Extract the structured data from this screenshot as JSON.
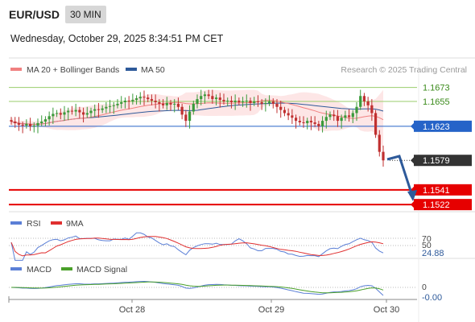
{
  "header": {
    "symbol": "EUR/USD",
    "timeframe": "30 MIN",
    "datetime": "Wednesday, October 29, 2025 8:34:51 PM CET"
  },
  "legend": {
    "ma20": "MA 20 + Bollinger Bands",
    "ma50": "MA 50",
    "rsi": "RSI",
    "ma9": "9MA",
    "macd": "MACD",
    "macd_signal": "MACD Signal"
  },
  "watermark": "Research © 2025 Trading Central",
  "levels": [
    {
      "value": 1.1673,
      "label": "1.1673",
      "kind": "resistance"
    },
    {
      "value": 1.1655,
      "label": "1.1655",
      "kind": "resistance"
    },
    {
      "value": 1.1623,
      "label": "1.1623",
      "kind": "pivot"
    },
    {
      "value": 1.1579,
      "label": "1.1579",
      "kind": "last"
    },
    {
      "value": 1.1541,
      "label": "1.1541",
      "kind": "support"
    },
    {
      "value": 1.1522,
      "label": "1.1522",
      "kind": "support"
    }
  ],
  "rsi_panel": {
    "tick_70": "70",
    "tick_50": "50",
    "value_label": "24.88"
  },
  "macd_panel": {
    "tick_0": "0",
    "value_label": "-0.00"
  },
  "x_axis_labels": [
    "Oct 28",
    "Oct 29",
    "Oct 30"
  ],
  "colors": {
    "up_candle": "#3a9a3a",
    "down_candle": "#c03030",
    "ma20": "#f08080",
    "ma50": "#2e5a9a",
    "bollinger_fill": "#fde2e2",
    "resistance": "#9acd6b",
    "pivot": "#2563c8",
    "support": "#e60000",
    "last": "#333333",
    "rsi": "#5b7fd6",
    "rsi_ma": "#e03030",
    "macd": "#5b7fd6",
    "macd_signal": "#4aa02a",
    "arrow": "#2e5a9a"
  },
  "chart_data": {
    "type": "candlestick",
    "price_axis": {
      "min": 1.1518,
      "max": 1.1682
    },
    "series": [
      {
        "name": "EUR/USD",
        "close": [
          1.1629,
          1.1627,
          1.1625,
          1.1624,
          1.1626,
          1.1623,
          1.1624,
          1.1627,
          1.1629,
          1.1632,
          1.1636,
          1.1639,
          1.164,
          1.1638,
          1.1641,
          1.1643,
          1.1642,
          1.1644,
          1.1641,
          1.1638,
          1.164,
          1.1643,
          1.1645,
          1.1644,
          1.1646,
          1.1648,
          1.1649,
          1.165,
          1.1652,
          1.1654,
          1.1656,
          1.1655,
          1.1657,
          1.1659,
          1.1661,
          1.166,
          1.1658,
          1.1656,
          1.1654,
          1.1652,
          1.165,
          1.1653,
          1.1651,
          1.1652,
          1.1648,
          1.1638,
          1.163,
          1.1642,
          1.1652,
          1.1658,
          1.1662,
          1.1664,
          1.1662,
          1.1658,
          1.166,
          1.1657,
          1.1655,
          1.1656,
          1.1654,
          1.1656,
          1.1654,
          1.1655,
          1.1656,
          1.1653,
          1.1655,
          1.1654,
          1.1652,
          1.1653,
          1.1655,
          1.1652,
          1.1648,
          1.1644,
          1.164,
          1.1637,
          1.1634,
          1.163,
          1.1628,
          1.1627,
          1.163,
          1.1628,
          1.1626,
          1.1623,
          1.163,
          1.1635,
          1.1638,
          1.1636,
          1.163,
          1.1634,
          1.1637,
          1.1635,
          1.164,
          1.1648,
          1.1662,
          1.1655,
          1.165,
          1.164,
          1.1612,
          1.159,
          1.1579
        ]
      },
      {
        "name": "MA 20 + Bollinger Bands"
      },
      {
        "name": "MA 50"
      }
    ],
    "rsi": {
      "last": 24.88,
      "levels": [
        70,
        50
      ]
    },
    "macd": {
      "last": -0.0
    }
  }
}
